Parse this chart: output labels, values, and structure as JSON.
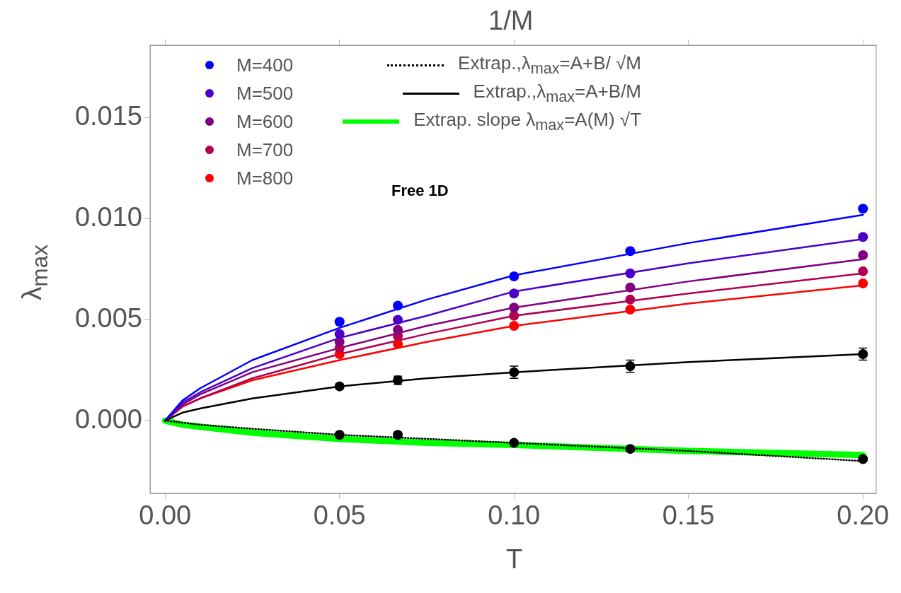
{
  "chart_data": {
    "type": "scatter",
    "xlabel": "T",
    "x2label": "1/M",
    "ylabel": "λ$_{max}$",
    "xlim": [
      -0.0043,
      0.2038
    ],
    "ylim": [
      -0.0036,
      0.0186
    ],
    "xticks": [
      {
        "value": 0,
        "label": "0.00"
      },
      0.05,
      {
        "value": 0.1,
        "label": "0.10"
      },
      0.15,
      {
        "value": 0.2,
        "label": "0.20"
      }
    ],
    "yticks": [
      {
        "value": 0,
        "label": "0.000"
      },
      0.005,
      {
        "value": 0.01,
        "label": "0.010"
      },
      0.015
    ],
    "legend": "top",
    "annotations": [
      "Free 1D"
    ],
    "series": [
      {
        "type": "line",
        "color": "#0000ff",
        "x": [
          0,
          0.005,
          0.01,
          0.025,
          0.05,
          0.075,
          0.1,
          0.15,
          0.2
        ],
        "values": [
          0,
          0.001,
          0.0016,
          0.003,
          0.0046,
          0.006,
          0.0072,
          0.0088,
          0.0102
        ]
      },
      {
        "type": "line",
        "color": "#4a00c8",
        "x": [
          0,
          0.005,
          0.01,
          0.025,
          0.05,
          0.075,
          0.1,
          0.15,
          0.2
        ],
        "values": [
          0,
          0.0009,
          0.0014,
          0.0026,
          0.0041,
          0.0052,
          0.0064,
          0.0078,
          0.009
        ]
      },
      {
        "type": "line",
        "color": "#800080",
        "x": [
          0,
          0.005,
          0.01,
          0.025,
          0.05,
          0.075,
          0.1,
          0.15,
          0.2
        ],
        "values": [
          0,
          0.0008,
          0.0013,
          0.0024,
          0.0036,
          0.0047,
          0.0056,
          0.0069,
          0.008
        ]
      },
      {
        "type": "line",
        "color": "#b00050",
        "x": [
          0,
          0.005,
          0.01,
          0.025,
          0.05,
          0.075,
          0.1,
          0.15,
          0.2
        ],
        "values": [
          0,
          0.0007,
          0.0011,
          0.0021,
          0.0033,
          0.0043,
          0.0052,
          0.0063,
          0.0073
        ]
      },
      {
        "type": "line",
        "color": "#ff0000",
        "x": [
          0,
          0.005,
          0.01,
          0.025,
          0.05,
          0.075,
          0.1,
          0.15,
          0.2
        ],
        "values": [
          0,
          0.0007,
          0.0011,
          0.002,
          0.003,
          0.0039,
          0.0047,
          0.0058,
          0.0067
        ]
      },
      {
        "type": "line",
        "name": "Extrap.,λ$_{max}$=A+B/ √M",
        "color": "#000000",
        "line_style": "dotted",
        "x": [
          0,
          0.005,
          0.01,
          0.025,
          0.05,
          0.075,
          0.1,
          0.15,
          0.2
        ],
        "values": [
          0,
          -0.0001,
          -0.0002,
          -0.0004,
          -0.0007,
          -0.0009,
          -0.0011,
          -0.0015,
          -0.002
        ]
      },
      {
        "type": "line",
        "name": "Extrap.,λ$_{max}$=A+B/M",
        "color": "#000000",
        "x": [
          0,
          0.005,
          0.01,
          0.025,
          0.05,
          0.075,
          0.1,
          0.15,
          0.2
        ],
        "values": [
          0,
          0.0004,
          0.0006,
          0.0011,
          0.0017,
          0.0021,
          0.0024,
          0.0029,
          0.0033
        ]
      },
      {
        "type": "line",
        "name": "Extrap. slope λ$_{max}$=A(M) √T",
        "color": "#00ff00",
        "x": [
          0,
          0.005,
          0.01,
          0.025,
          0.05,
          0.075,
          0.1,
          0.15,
          0.2
        ],
        "values": [
          0,
          -0.0002,
          -0.0003,
          -0.0006,
          -0.0009,
          -0.0011,
          -0.0012,
          -0.0015,
          -0.0017
        ]
      },
      {
        "type": "scatter",
        "marker": "circle",
        "name": "M=400",
        "color": "#0000ff",
        "x": [
          0.05,
          0.0667,
          0.1,
          0.1333,
          0.2
        ],
        "values": [
          0.0049,
          0.0057,
          0.00715,
          0.0084,
          0.0105
        ]
      },
      {
        "type": "scatter",
        "marker": "circle",
        "name": "M=500",
        "color": "#4a00c8",
        "x": [
          0.05,
          0.0667,
          0.1,
          0.1333,
          0.2
        ],
        "values": [
          0.0043,
          0.005,
          0.0063,
          0.0073,
          0.0091
        ]
      },
      {
        "type": "scatter",
        "marker": "circle",
        "name": "M=600",
        "color": "#800080",
        "x": [
          0.05,
          0.0667,
          0.1,
          0.1333,
          0.2
        ],
        "values": [
          0.0039,
          0.0045,
          0.0056,
          0.0066,
          0.0082
        ]
      },
      {
        "type": "scatter",
        "marker": "circle",
        "name": "M=700",
        "color": "#b00050",
        "x": [
          0.05,
          0.0667,
          0.1,
          0.1333,
          0.2
        ],
        "values": [
          0.0036,
          0.0042,
          0.0052,
          0.006,
          0.0074
        ]
      },
      {
        "type": "scatter",
        "marker": "circle",
        "name": "M=800",
        "color": "#ff0000",
        "x": [
          0.05,
          0.0667,
          0.1,
          0.1333,
          0.2
        ],
        "values": [
          0.0033,
          0.0038,
          0.0047,
          0.0055,
          0.0068
        ]
      },
      {
        "type": "scatter",
        "marker": "circle",
        "color": "#000000",
        "x": [
          0.05,
          0.0667,
          0.1,
          0.1333,
          0.2
        ],
        "values": [
          0.0017,
          0.002,
          0.0024,
          0.0027,
          0.0033
        ],
        "errors": [
          0.00012,
          0.0002,
          0.0003,
          0.0003,
          0.0003
        ]
      },
      {
        "type": "scatter",
        "marker": "circle",
        "color": "#000000",
        "x": [
          0.05,
          0.0667,
          0.1,
          0.1333,
          0.2
        ],
        "values": [
          -0.0007,
          -0.0007,
          -0.0011,
          -0.0014,
          -0.0019
        ],
        "errors": [
          null,
          null,
          null,
          null,
          0.0001
        ]
      }
    ]
  }
}
